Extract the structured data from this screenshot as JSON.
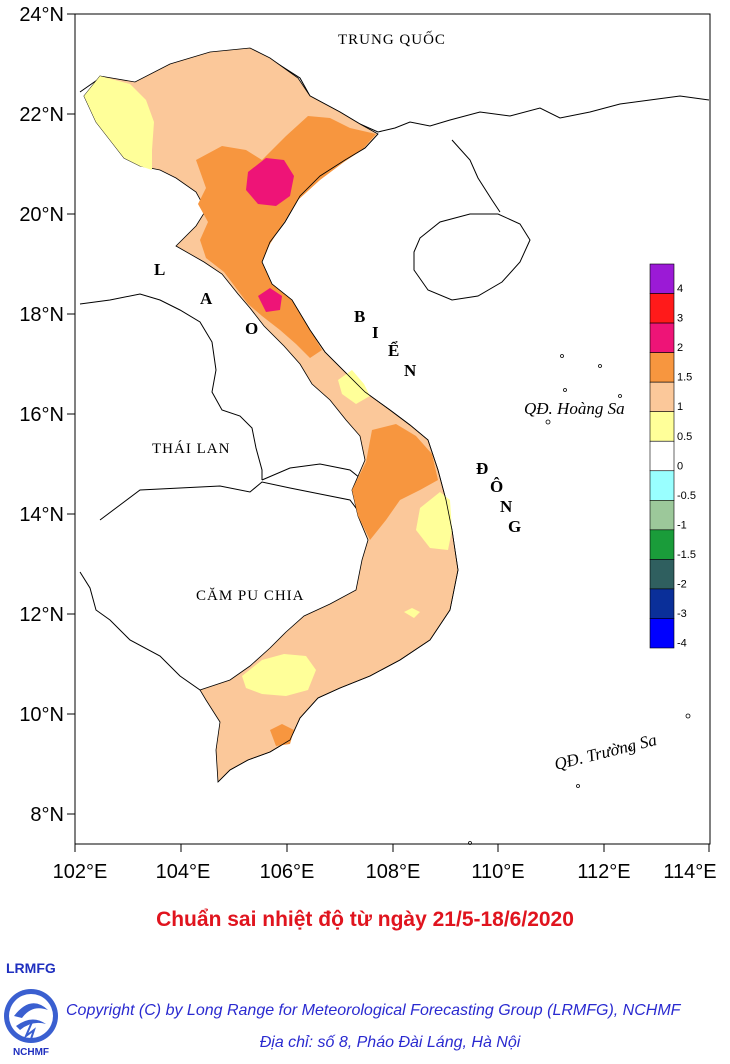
{
  "map": {
    "y_ticks": [
      "24°N",
      "22°N",
      "20°N",
      "18°N",
      "16°N",
      "14°N",
      "12°N",
      "10°N",
      "8°N"
    ],
    "x_ticks": [
      "102°E",
      "104°E",
      "106°E",
      "108°E",
      "110°E",
      "112°E",
      "114°E"
    ],
    "places": {
      "china": "TRUNG  QUỐC",
      "laos": [
        "L",
        "A",
        "O"
      ],
      "thailand": "THÁI  LAN",
      "cambodia": "CĂM PU CHIA",
      "sea_bien": [
        "B",
        "I",
        "Ể",
        "N"
      ],
      "sea_dong": [
        "Đ",
        "Ô",
        "N",
        "G"
      ],
      "hoang_sa": "QĐ. Hoàng Sa",
      "truong_sa": "QĐ. Trường Sa"
    }
  },
  "legend": {
    "labels": [
      "4",
      "3",
      "2",
      "1.5",
      "1",
      "0.5",
      "0",
      "-0.5",
      "-1",
      "-1.5",
      "-2",
      "-3",
      "-4"
    ],
    "colors": [
      "#9b1ad6",
      "#ff1a1a",
      "#ee1477",
      "#f7963f",
      "#fbc89a",
      "#ffff99",
      "#ffffff",
      "#99ffff",
      "#9cc89a",
      "#1a9c3a",
      "#2f5f5f",
      "#0a2f99",
      "#0000ff"
    ]
  },
  "title": "Chuẩn sai nhiệt độ từ ngày 21/5-18/6/2020",
  "footer": {
    "org": "LRMFG",
    "logo_text": "NCHMF",
    "copyright": "Copyright (C) by Long Range for Meteorological Forecasting Group (LRMFG), NCHMF",
    "address": "Địa chỉ: số 8, Pháo Đài Láng, Hà Nội"
  }
}
